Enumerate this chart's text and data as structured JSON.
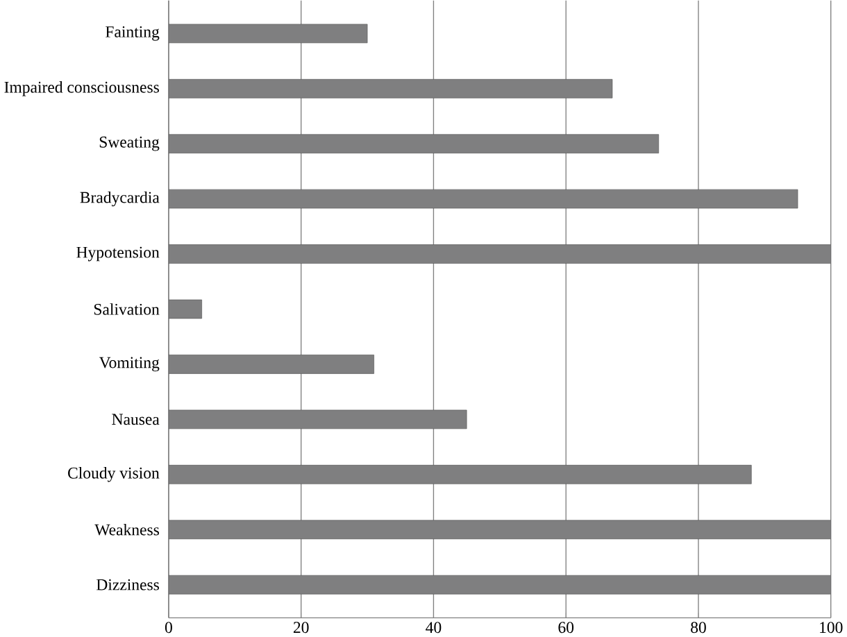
{
  "chart_data": {
    "type": "bar",
    "orientation": "horizontal",
    "categories": [
      "Fainting",
      "Impaired consciousness",
      "Sweating",
      "Bradycardia",
      "Hypotension",
      "Salivation",
      "Vomiting",
      "Nausea",
      "Cloudy vision",
      "Weakness",
      "Dizziness"
    ],
    "values": [
      30,
      67,
      74,
      95,
      100,
      5,
      31,
      45,
      88,
      100,
      100
    ],
    "color": "#7f7f80",
    "xlim": [
      0,
      100
    ],
    "xticks": [
      0,
      20,
      40,
      60,
      80,
      100
    ],
    "grid": "x"
  }
}
